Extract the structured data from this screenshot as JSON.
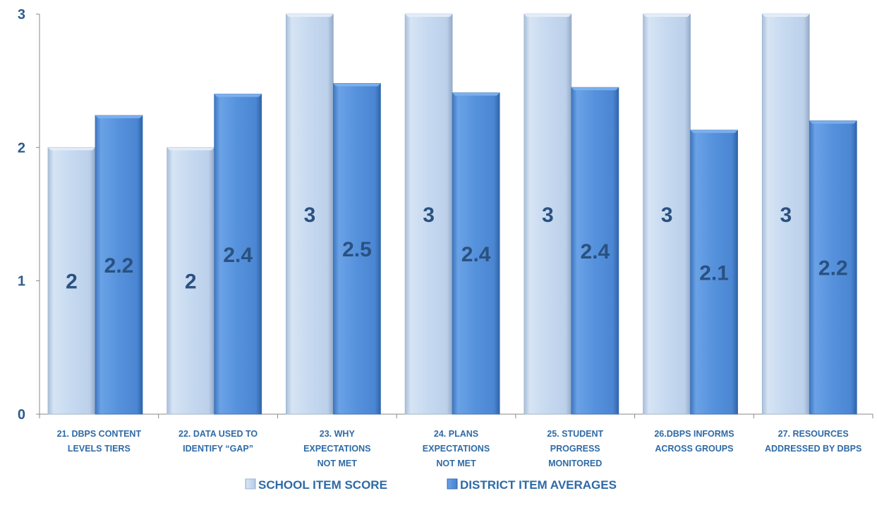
{
  "chart_data": {
    "type": "bar",
    "categories": [
      "21.  DBPS content levels tiers",
      "22. Data used to identify “gap”",
      "23. Why expectations not met",
      "24. Plans expectations not met",
      "25. Student progress monitored",
      "26.DBPS informs across groups",
      "27. Resources addressed by DBPS"
    ],
    "category_lines": [
      [
        "21.  DBPS CONTENT",
        "LEVELS TIERS"
      ],
      [
        "22. DATA USED TO",
        "IDENTIFY “GAP”"
      ],
      [
        "23. WHY",
        "EXPECTATIONS",
        "NOT MET"
      ],
      [
        "24. PLANS",
        "EXPECTATIONS",
        "NOT MET"
      ],
      [
        "25. STUDENT",
        "PROGRESS",
        "MONITORED"
      ],
      [
        "26.DBPS INFORMS",
        "ACROSS GROUPS"
      ],
      [
        "27. RESOURCES",
        "ADDRESSED BY DBPS"
      ]
    ],
    "series": [
      {
        "name": "School Item Score",
        "name_display": "SCHOOL ITEM SCORE",
        "values": [
          2,
          2,
          3,
          3,
          3,
          3,
          3
        ],
        "labels": [
          "2",
          "2",
          "3",
          "3",
          "3",
          "3",
          "3"
        ],
        "color": "#c6d9f0"
      },
      {
        "name": "District Item Averages",
        "name_display": "DISTRICT ITEM AVERAGES",
        "values": [
          2.24,
          2.4,
          2.48,
          2.41,
          2.45,
          2.13,
          2.2
        ],
        "labels": [
          "2.2",
          "2.4",
          "2.5",
          "2.4",
          "2.4",
          "2.1",
          "2.2"
        ],
        "color": "#5591dc"
      }
    ],
    "yticks": [
      "0",
      "1",
      "2",
      "3"
    ],
    "ylim": [
      0,
      3
    ],
    "legend_position": "bottom",
    "grid": false,
    "title": "",
    "xlabel": "",
    "ylabel": ""
  }
}
